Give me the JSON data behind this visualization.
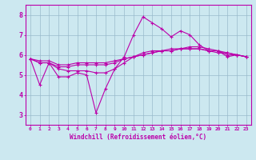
{
  "xlabel": "Windchill (Refroidissement éolien,°C)",
  "background_color": "#cce8f0",
  "line_color": "#bb00aa",
  "grid_color": "#99bbcc",
  "xlim": [
    -0.5,
    23.5
  ],
  "ylim": [
    2.5,
    8.5
  ],
  "yticks": [
    3,
    4,
    5,
    6,
    7,
    8
  ],
  "xticks": [
    0,
    1,
    2,
    3,
    4,
    5,
    6,
    7,
    8,
    9,
    10,
    11,
    12,
    13,
    14,
    15,
    16,
    17,
    18,
    19,
    20,
    21,
    22,
    23
  ],
  "line1_y": [
    5.8,
    4.5,
    5.6,
    4.9,
    4.9,
    5.1,
    5.0,
    3.1,
    4.3,
    5.3,
    5.9,
    7.0,
    7.9,
    7.6,
    7.3,
    6.9,
    7.2,
    7.0,
    6.5,
    6.2,
    6.2,
    5.9,
    6.0,
    5.9
  ],
  "line2_y": [
    5.8,
    5.6,
    5.6,
    5.3,
    5.2,
    5.2,
    5.2,
    5.1,
    5.1,
    5.3,
    5.6,
    5.9,
    6.1,
    6.2,
    6.2,
    6.2,
    6.3,
    6.3,
    6.3,
    6.2,
    6.2,
    6.0,
    6.0,
    5.9
  ],
  "line3_y": [
    5.8,
    5.6,
    5.6,
    5.4,
    5.4,
    5.5,
    5.5,
    5.5,
    5.5,
    5.6,
    5.8,
    5.9,
    6.0,
    6.1,
    6.2,
    6.2,
    6.3,
    6.3,
    6.3,
    6.2,
    6.1,
    6.1,
    6.0,
    5.9
  ],
  "line4_y": [
    5.8,
    5.7,
    5.7,
    5.5,
    5.5,
    5.6,
    5.6,
    5.6,
    5.6,
    5.7,
    5.8,
    5.9,
    6.0,
    6.1,
    6.2,
    6.3,
    6.3,
    6.4,
    6.4,
    6.3,
    6.2,
    6.1,
    6.0,
    5.9
  ]
}
